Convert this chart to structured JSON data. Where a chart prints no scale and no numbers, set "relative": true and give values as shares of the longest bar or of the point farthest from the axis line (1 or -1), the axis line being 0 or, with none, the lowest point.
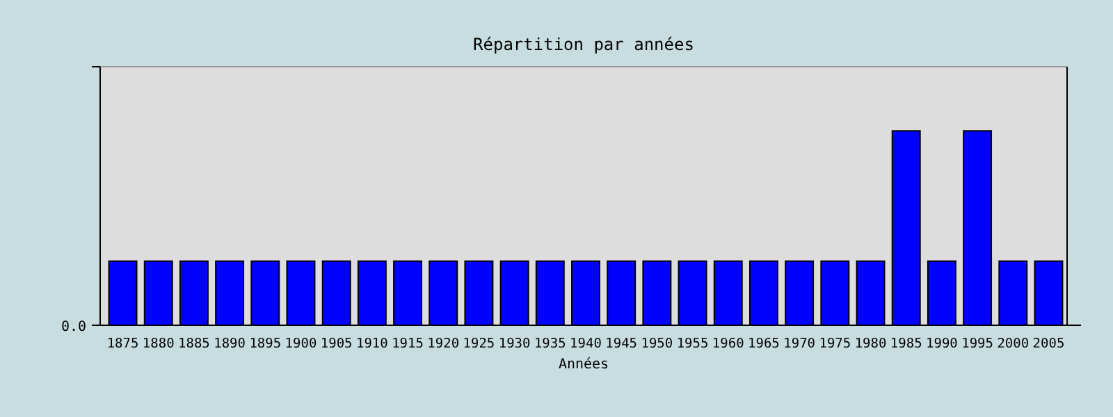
{
  "chart_data": {
    "type": "bar",
    "title": "Répartition par années",
    "xlabel": "Années",
    "categories": [
      "1875",
      "1880",
      "1885",
      "1890",
      "1895",
      "1900",
      "1905",
      "1910",
      "1915",
      "1920",
      "1925",
      "1930",
      "1935",
      "1940",
      "1945",
      "1950",
      "1955",
      "1960",
      "1965",
      "1970",
      "1975",
      "1980",
      "1985",
      "1990",
      "1995",
      "2000",
      "2005"
    ],
    "values": [
      0.33,
      0.33,
      0.33,
      0.33,
      0.33,
      0.33,
      0.33,
      0.33,
      0.33,
      0.33,
      0.33,
      0.33,
      0.33,
      0.33,
      0.33,
      0.33,
      0.33,
      0.33,
      0.33,
      0.33,
      0.33,
      0.33,
      1,
      0.33,
      1,
      0.33,
      0.33
    ],
    "color": "#0000ff",
    "relative": true,
    "annotations": [
      "0.0"
    ]
  }
}
